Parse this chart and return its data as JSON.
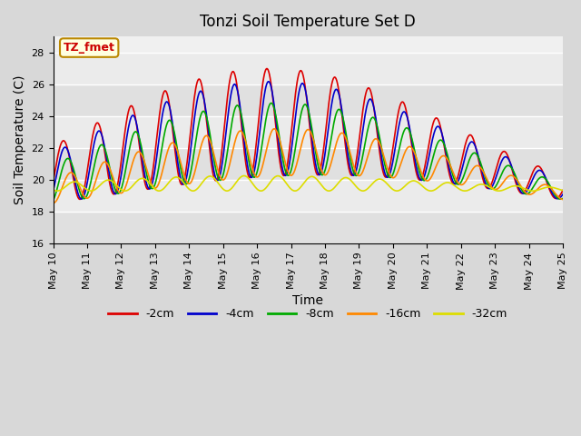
{
  "title": "Tonzi Soil Temperature Set D",
  "xlabel": "Time",
  "ylabel": "Soil Temperature (C)",
  "ylim": [
    16,
    29
  ],
  "yticks": [
    16,
    18,
    20,
    22,
    24,
    26,
    28
  ],
  "legend_label": "TZ_fmet",
  "bg_color": "#d8d8d8",
  "inner_bg": "#f0f0f0",
  "series_colors": {
    "-2cm": "#dd0000",
    "-4cm": "#0000cc",
    "-8cm": "#00aa00",
    "-16cm": "#ff8800",
    "-32cm": "#dddd00"
  },
  "xtick_labels": [
    "May 10",
    "May 11",
    "May 12",
    "May 13",
    "May 14",
    "May 15",
    "May 16",
    "May 17",
    "May 18",
    "May 19",
    "May 20",
    "May 21",
    "May 22",
    "May 23",
    "May 24",
    "May 25"
  ],
  "n_days": 15,
  "pts_per_day": 48
}
